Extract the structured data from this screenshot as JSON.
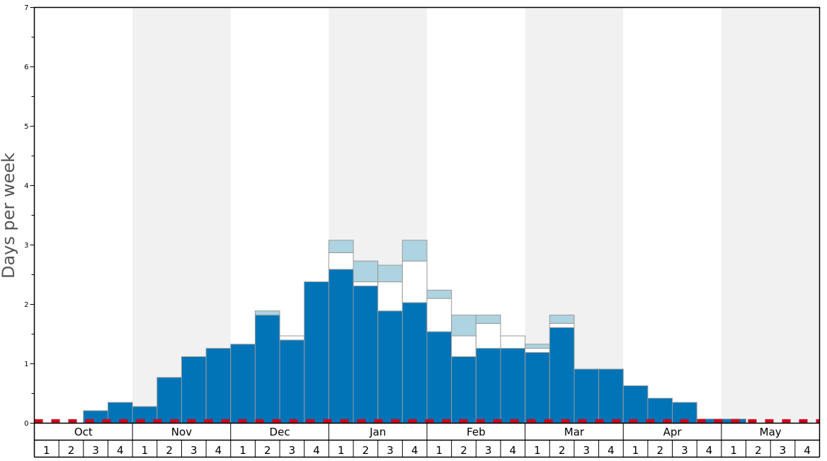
{
  "chart_data": {
    "type": "bar",
    "ylabel": "Days per week",
    "ylim": [
      0,
      7
    ],
    "yticks": [
      0,
      1,
      2,
      3,
      4,
      5,
      6,
      7
    ],
    "grid": false,
    "months": [
      "Oct",
      "Nov",
      "Dec",
      "Jan",
      "Feb",
      "Mar",
      "Apr",
      "May"
    ],
    "week_labels": [
      "1",
      "2",
      "3",
      "4"
    ],
    "reference_line": {
      "value": 0.02,
      "color": "#d0021b",
      "style": "dashed"
    },
    "colors": {
      "primary": "#0074b7",
      "secondary": "#ffffff",
      "tertiary": "#add4e0",
      "bar_border": "#999999",
      "month_shade": "#f1f1f1"
    },
    "series": [
      {
        "values": [
          0,
          0,
          0.21,
          0.35,
          0.28,
          0.77,
          1.12,
          1.26,
          1.33,
          1.82,
          1.4,
          2.38,
          2.59,
          2.31,
          1.89,
          2.03,
          1.54,
          1.12,
          1.26,
          1.26,
          1.19,
          1.61,
          0.91,
          0.91,
          0.63,
          0.42,
          0.35,
          0.07,
          0.07,
          0,
          0,
          0
        ]
      },
      {
        "values": [
          0,
          0,
          0,
          0,
          0,
          0,
          0,
          0,
          0,
          0,
          0.07,
          0,
          0.28,
          0.07,
          0.49,
          0.7,
          0.56,
          0.35,
          0.42,
          0.21,
          0.07,
          0.07,
          0,
          0,
          0,
          0,
          0,
          0,
          0,
          0,
          0,
          0
        ]
      },
      {
        "values": [
          0,
          0,
          0,
          0,
          0,
          0,
          0,
          0,
          0,
          0.07,
          0,
          0,
          0.21,
          0.35,
          0.28,
          0.35,
          0.14,
          0.35,
          0.14,
          0,
          0.07,
          0.14,
          0,
          0,
          0,
          0,
          0,
          0,
          0,
          0,
          0,
          0
        ]
      }
    ]
  }
}
